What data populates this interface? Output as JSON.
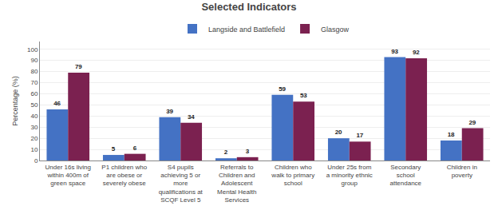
{
  "chart_data": {
    "type": "bar",
    "title": "Selected Indicators",
    "categories": [
      "Under 16s living\nwithin 400m of\ngreen space",
      "P1 children who\nare obese or\nseverely obese",
      "S4 pupils\nachieving 5 or\nmore\nqualifications at\nSCQF Level 5",
      "Referrals to\nChildren and\nAdolescent\nMental Health\nServices",
      "Children who\nwalk to primary\nschool",
      "Under 25s from\na minority ethnic\ngroup",
      "Secondary\nschool\nattendance",
      "Children in\npoverty"
    ],
    "series": [
      {
        "name": "Langside and Battlefield",
        "color": "#4472C4",
        "values": [
          46,
          5,
          39,
          2,
          59,
          20,
          93,
          18
        ]
      },
      {
        "name": "Glasgow",
        "color": "#7B2150",
        "values": [
          79,
          6,
          34,
          3,
          53,
          17,
          92,
          29
        ]
      }
    ],
    "ylabel": "Percentage (%)",
    "ylim": [
      0,
      107
    ],
    "yticks": [
      0,
      10,
      20,
      30,
      40,
      50,
      60,
      70,
      80,
      90,
      100
    ],
    "grid": true,
    "legend": "top",
    "data_labels": true
  }
}
